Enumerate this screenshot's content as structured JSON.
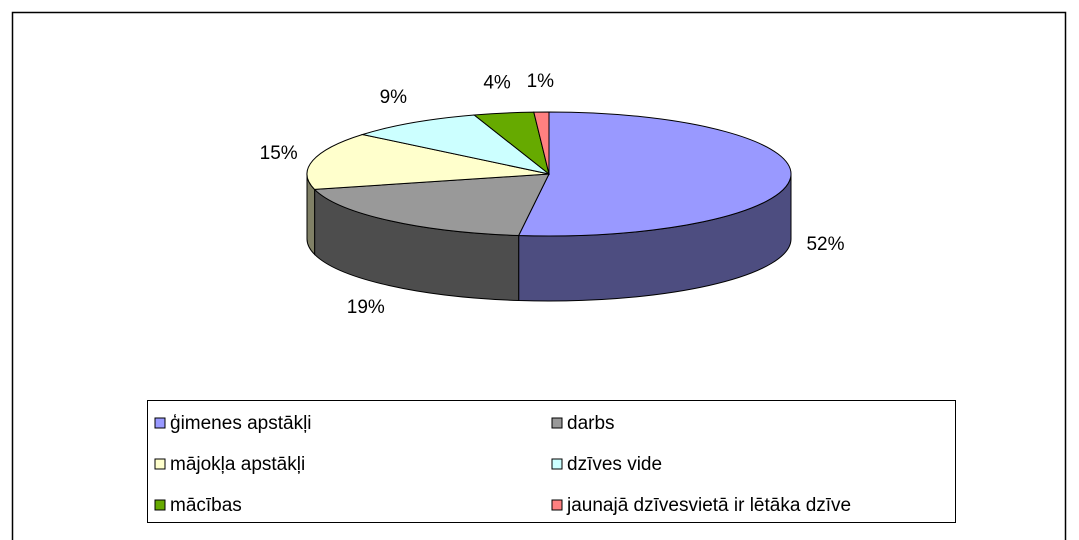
{
  "chart_data": {
    "type": "pie3d",
    "categories": [
      "ģimenes apstākļi",
      "darbs",
      "mājokļa apstākļi",
      "dzīves vide",
      "mācības",
      "jaunajā dzīvesvietā ir lētāka dzīve"
    ],
    "values": [
      52,
      19,
      15,
      9,
      4,
      1
    ],
    "value_labels": [
      "52%",
      "19%",
      "15%",
      "9%",
      "4%",
      "1%"
    ],
    "colors": [
      "#9999ff",
      "#999999",
      "#ffffcc",
      "#ccffff",
      "#66aa00",
      "#ff8080"
    ],
    "legend": "bottom"
  }
}
